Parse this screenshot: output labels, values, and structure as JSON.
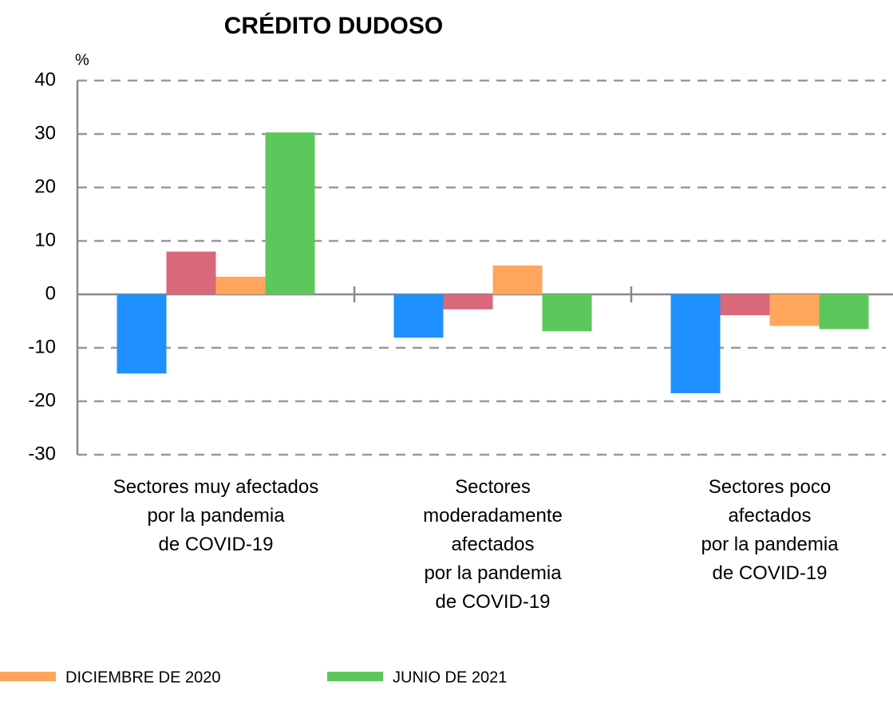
{
  "chart_data": {
    "type": "bar",
    "title": "CRÉDITO DUDOSO",
    "y_unit": "%",
    "categories": [
      "Sectores muy afectados\npor la pandemia\nde COVID-19",
      "Sectores\nmoderadamente\nafectados\npor la pandemia\nde COVID-19",
      "Sectores poco\nafectados\npor la pandemia\nde COVID-19"
    ],
    "series": [
      {
        "color": "#1e90ff",
        "values": [
          -14.8,
          -8.1,
          -18.5
        ]
      },
      {
        "color": "#d9687a",
        "values": [
          8.0,
          -2.8,
          -3.9
        ]
      },
      {
        "name": "DICIEMBRE DE 2020",
        "color": "#ffa65c",
        "values": [
          3.3,
          5.4,
          -5.9
        ]
      },
      {
        "name": "JUNIO DE 2021",
        "color": "#5cc85c",
        "values": [
          30.3,
          -6.9,
          -6.5
        ]
      }
    ],
    "ylim": [
      -30,
      40
    ],
    "yticks": [
      -30,
      -20,
      -10,
      0,
      10,
      20,
      30,
      40
    ],
    "grid": true
  }
}
